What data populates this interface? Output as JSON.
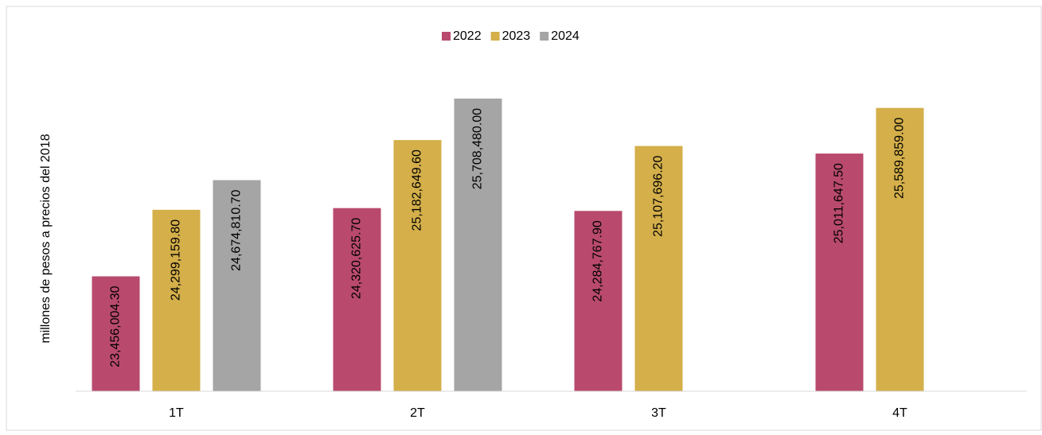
{
  "chart_data": {
    "type": "bar",
    "y_label": "millones de pesos a precios del 2018",
    "categories": [
      "1T",
      "2T",
      "3T",
      "4T"
    ],
    "series": [
      {
        "name": "2022",
        "color": "#b94a6e",
        "values": [
          23456004.3,
          24320625.7,
          24284767.9,
          25011647.5
        ],
        "value_labels": [
          "23,456,004.30",
          "24,320,625.70",
          "24,284,767.90",
          "25,011,647.50"
        ]
      },
      {
        "name": "2023",
        "color": "#d4af4a",
        "values": [
          24299159.8,
          25182649.6,
          25107696.2,
          25589859.0
        ],
        "value_labels": [
          "24,299,159.80",
          "25,182,649.60",
          "25,107,696.20",
          "25,589,859.00"
        ]
      },
      {
        "name": "2024",
        "color": "#a5a5a5",
        "values": [
          24674810.7,
          25708480.0,
          null,
          null
        ],
        "value_labels": [
          "24,674,810.70",
          "25,708,480.00",
          null,
          null
        ]
      }
    ],
    "ylim": [
      22000000,
      26000000
    ],
    "legend": "top"
  }
}
